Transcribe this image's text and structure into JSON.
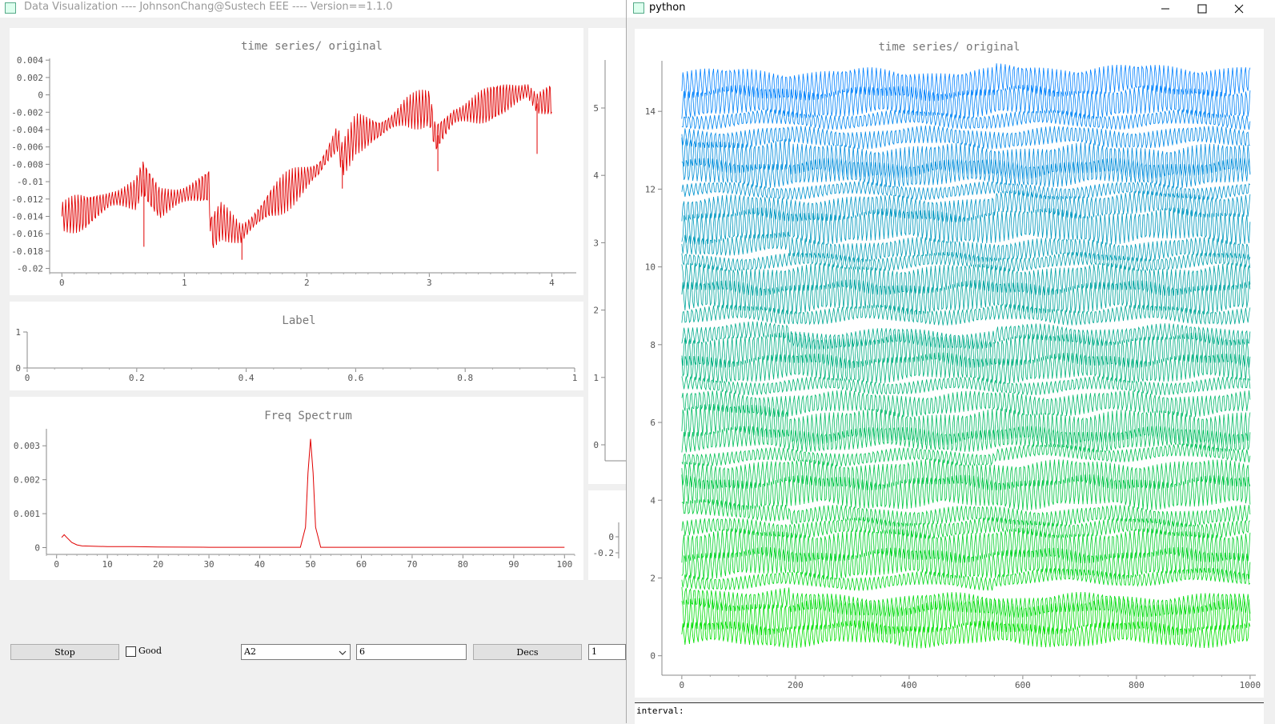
{
  "main_window": {
    "title": "Data Visualization ---- JohnsonChang@Sustech EEE ---- Version==1.1.0"
  },
  "python_window": {
    "title": "python",
    "bottom_label": "interval:"
  },
  "controls": {
    "stop_label": "Stop",
    "good_label": "Good",
    "channel_selected": "A2",
    "channel_input_value": "6",
    "decs_label": "Decs",
    "decs_value": "1"
  },
  "icons": [
    "app-icon",
    "minimize-icon",
    "maximize-icon",
    "close-icon",
    "chevron-down-icon",
    "checkbox-icon"
  ],
  "colors": {
    "time_series_line": "#e00000",
    "spectrum_line": "#e00000",
    "multichannel_top": "#0080ff",
    "multichannel_bottom": "#00e000"
  },
  "chart_data": [
    {
      "name": "time-series-chart",
      "type": "line",
      "title": "time series/ original",
      "xlim": [
        -0.1,
        4.2
      ],
      "ylim": [
        -0.0205,
        0.0042
      ],
      "x_ticks": [
        "0",
        "1",
        "2",
        "3",
        "4"
      ],
      "y_ticks": [
        "0.004",
        "0.002",
        "0",
        "-0.002",
        "-0.004",
        "-0.006",
        "-0.008",
        "-0.01",
        "-0.012",
        "-0.014",
        "-0.016",
        "-0.018",
        "-0.02"
      ],
      "series": [
        {
          "color": "#e00000",
          "x": [
            0,
            0.2,
            0.4,
            0.6,
            0.66,
            0.7,
            0.8,
            1.0,
            1.2,
            1.22,
            1.3,
            1.46,
            1.5,
            1.7,
            1.9,
            2.1,
            2.25,
            2.29,
            2.4,
            2.6,
            2.8,
            3.0,
            3.05,
            3.2,
            3.4,
            3.6,
            3.8,
            3.88,
            4.0
          ],
          "y": [
            -0.014,
            -0.0135,
            -0.012,
            -0.0115,
            -0.0095,
            -0.0105,
            -0.0125,
            -0.0115,
            -0.0105,
            -0.016,
            -0.0145,
            -0.016,
            -0.0155,
            -0.0125,
            -0.0105,
            -0.0085,
            -0.005,
            -0.0075,
            -0.0045,
            -0.004,
            -0.002,
            -0.0015,
            -0.005,
            -0.0025,
            -0.0015,
            -0.0005,
            0.0005,
            -0.001,
            -0.0005
          ],
          "amplitude": 0.002
        }
      ]
    },
    {
      "name": "label-chart",
      "type": "line",
      "title": "Label",
      "xlim": [
        0,
        1
      ],
      "ylim": [
        0,
        1
      ],
      "x_ticks": [
        "0",
        "0.2",
        "0.4",
        "0.6",
        "0.8",
        "1"
      ],
      "y_ticks": [
        "1",
        "0"
      ],
      "series": []
    },
    {
      "name": "freq-spectrum-chart",
      "type": "line",
      "title": "Freq Spectrum",
      "xlim": [
        -2,
        102
      ],
      "ylim": [
        -0.0002,
        0.0035
      ],
      "x_ticks": [
        "0",
        "10",
        "20",
        "30",
        "40",
        "50",
        "60",
        "70",
        "80",
        "90",
        "100"
      ],
      "y_ticks": [
        "0.003",
        "0.002",
        "0.001",
        "0"
      ],
      "series": [
        {
          "color": "#e00000",
          "x": [
            1,
            1.5,
            2,
            3,
            4,
            5,
            7,
            10,
            15,
            20,
            30,
            40,
            48,
            49,
            49.5,
            50,
            50.5,
            51,
            52,
            60,
            70,
            80,
            90,
            100
          ],
          "y": [
            0.0003,
            0.00038,
            0.0003,
            0.00015,
            8e-05,
            5e-05,
            4e-05,
            3e-05,
            3e-05,
            2e-05,
            1e-05,
            1e-05,
            1e-05,
            0.0006,
            0.0022,
            0.0032,
            0.0022,
            0.0006,
            1e-05,
            1e-05,
            1e-05,
            1e-05,
            1e-05,
            1e-05
          ]
        }
      ]
    },
    {
      "name": "partial-chart-right",
      "type": "line",
      "y_ticks": [
        "5",
        "4",
        "3",
        "2",
        "1",
        "0"
      ],
      "series": []
    },
    {
      "name": "partial-chart-small",
      "type": "line",
      "y_ticks": [
        "0",
        "-0.2"
      ],
      "series": []
    },
    {
      "name": "multichannel-chart",
      "type": "line",
      "title": "time series/ original",
      "xlim": [
        -35,
        1010
      ],
      "ylim": [
        -0.5,
        15.3
      ],
      "x_ticks": [
        "0",
        "200",
        "400",
        "600",
        "800",
        "1000"
      ],
      "y_ticks": [
        "14",
        "12",
        "10",
        "8",
        "6",
        "4",
        "2",
        "0"
      ],
      "channel_count": 32,
      "channel_range": [
        0,
        15
      ],
      "series": []
    }
  ]
}
